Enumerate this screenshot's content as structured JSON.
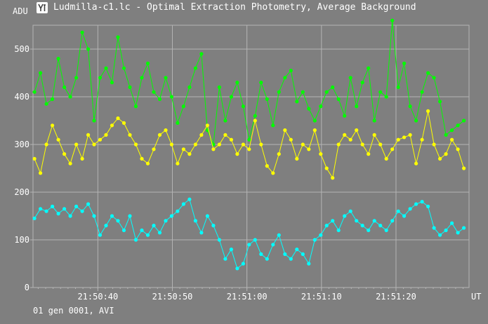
{
  "window": {
    "title": "Ludmilla-c1.lc - Optimal Extraction Photometry, Average Background",
    "icon": "photometry-app-icon"
  },
  "footer": {
    "status": "01 gen 0001, AVI"
  },
  "colors": {
    "background": "#7f7f7f",
    "grid": "#b4b4b4",
    "axis_text": "#ffffff",
    "green": "#00ff00",
    "yellow": "#ffff00",
    "cyan": "#00ffff"
  },
  "chart_data": {
    "type": "line",
    "title": "",
    "ylabel": "ADU",
    "xlabel": "UT",
    "ylim": [
      0,
      550
    ],
    "xlim": [
      "21:50:31.3",
      "21:51:29.8"
    ],
    "yticks": [
      0,
      100,
      200,
      300,
      400,
      500
    ],
    "xticks": [
      "21:50:40",
      "21:50:50",
      "21:51:00",
      "21:51:10",
      "21:51:20"
    ],
    "grid": true,
    "markers": "filled-circle",
    "series": [
      {
        "color": "#00ff00",
        "x_seconds_after_21_50_30": [
          1.5,
          2.3,
          3.1,
          3.9,
          4.7,
          5.5,
          6.3,
          7.1,
          7.9,
          8.7,
          9.5,
          10.3,
          11.1,
          11.9,
          12.7,
          13.5,
          14.3,
          15.1,
          15.9,
          16.7,
          17.5,
          18.3,
          19.1,
          19.9,
          20.7,
          21.5,
          22.3,
          23.1,
          23.9,
          24.7,
          25.5,
          26.3,
          27.1,
          27.9,
          28.7,
          29.5,
          30.3,
          31.1,
          31.9,
          32.7,
          33.5,
          34.3,
          35.1,
          35.9,
          36.7,
          37.5,
          38.3,
          39.1,
          39.9,
          40.7,
          41.5,
          42.3,
          43.1,
          43.9,
          44.7,
          45.5,
          46.3,
          47.1,
          47.9,
          48.7,
          49.5,
          50.3,
          51.1,
          51.9,
          52.7,
          53.5,
          54.3,
          55.1,
          55.9,
          56.7,
          57.5,
          58.3,
          59.1
        ],
        "values": [
          410,
          450,
          385,
          395,
          480,
          420,
          400,
          440,
          535,
          500,
          350,
          440,
          460,
          430,
          525,
          460,
          420,
          380,
          440,
          470,
          410,
          395,
          440,
          400,
          345,
          380,
          420,
          460,
          490,
          330,
          300,
          420,
          350,
          400,
          430,
          380,
          310,
          360,
          430,
          395,
          340,
          410,
          440,
          455,
          390,
          410,
          375,
          350,
          380,
          410,
          420,
          395,
          360,
          440,
          380,
          430,
          460,
          350,
          410,
          400,
          560,
          420,
          470,
          380,
          350,
          410,
          450,
          440,
          390,
          320,
          330,
          340,
          350
        ]
      },
      {
        "color": "#ffff00",
        "x_seconds_after_21_50_30": [
          1.5,
          2.3,
          3.1,
          3.9,
          4.7,
          5.5,
          6.3,
          7.1,
          7.9,
          8.7,
          9.5,
          10.3,
          11.1,
          11.9,
          12.7,
          13.5,
          14.3,
          15.1,
          15.9,
          16.7,
          17.5,
          18.3,
          19.1,
          19.9,
          20.7,
          21.5,
          22.3,
          23.1,
          23.9,
          24.7,
          25.5,
          26.3,
          27.1,
          27.9,
          28.7,
          29.5,
          30.3,
          31.1,
          31.9,
          32.7,
          33.5,
          34.3,
          35.1,
          35.9,
          36.7,
          37.5,
          38.3,
          39.1,
          39.9,
          40.7,
          41.5,
          42.3,
          43.1,
          43.9,
          44.7,
          45.5,
          46.3,
          47.1,
          47.9,
          48.7,
          49.5,
          50.3,
          51.1,
          51.9,
          52.7,
          53.5,
          54.3,
          55.1,
          55.9,
          56.7,
          57.5,
          58.3,
          59.1
        ],
        "values": [
          270,
          240,
          300,
          340,
          310,
          280,
          260,
          300,
          270,
          320,
          300,
          310,
          320,
          340,
          355,
          345,
          320,
          300,
          270,
          260,
          290,
          320,
          330,
          300,
          260,
          290,
          280,
          300,
          320,
          340,
          290,
          300,
          320,
          310,
          280,
          300,
          290,
          350,
          300,
          255,
          240,
          280,
          330,
          310,
          270,
          300,
          290,
          330,
          280,
          250,
          230,
          300,
          320,
          310,
          330,
          300,
          280,
          320,
          300,
          270,
          290,
          310,
          315,
          320,
          260,
          310,
          370,
          300,
          270,
          280,
          310,
          290,
          250
        ]
      },
      {
        "color": "#00ffff",
        "x_seconds_after_21_50_30": [
          1.5,
          2.3,
          3.1,
          3.9,
          4.7,
          5.5,
          6.3,
          7.1,
          7.9,
          8.7,
          9.5,
          10.3,
          11.1,
          11.9,
          12.7,
          13.5,
          14.3,
          15.1,
          15.9,
          16.7,
          17.5,
          18.3,
          19.1,
          19.9,
          20.7,
          21.5,
          22.3,
          23.1,
          23.9,
          24.7,
          25.5,
          26.3,
          27.1,
          27.9,
          28.7,
          29.5,
          30.3,
          31.1,
          31.9,
          32.7,
          33.5,
          34.3,
          35.1,
          35.9,
          36.7,
          37.5,
          38.3,
          39.1,
          39.9,
          40.7,
          41.5,
          42.3,
          43.1,
          43.9,
          44.7,
          45.5,
          46.3,
          47.1,
          47.9,
          48.7,
          49.5,
          50.3,
          51.1,
          51.9,
          52.7,
          53.5,
          54.3,
          55.1,
          55.9,
          56.7,
          57.5,
          58.3,
          59.1
        ],
        "values": [
          145,
          165,
          160,
          170,
          155,
          165,
          150,
          170,
          160,
          175,
          150,
          110,
          130,
          150,
          140,
          120,
          150,
          100,
          120,
          110,
          130,
          115,
          140,
          150,
          160,
          175,
          185,
          140,
          115,
          150,
          130,
          100,
          60,
          80,
          40,
          50,
          90,
          100,
          70,
          60,
          90,
          110,
          70,
          60,
          80,
          70,
          50,
          100,
          110,
          130,
          140,
          120,
          150,
          160,
          140,
          130,
          120,
          140,
          130,
          120,
          140,
          160,
          150,
          165,
          175,
          180,
          170,
          125,
          110,
          120,
          135,
          115,
          125
        ]
      }
    ]
  }
}
